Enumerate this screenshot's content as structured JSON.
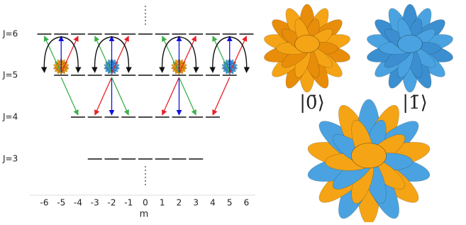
{
  "levels": [
    {
      "label": "J=6"
    },
    {
      "label": "J=5"
    },
    {
      "label": "J=4"
    },
    {
      "label": "J=3"
    }
  ],
  "axis": {
    "label": "m",
    "ticks": [
      "-6",
      "-5",
      "-4",
      "-3",
      "-2",
      "-1",
      "0",
      "1",
      "2",
      "3",
      "4",
      "5",
      "6"
    ]
  },
  "states": [
    {
      "label": "|0̄⟩"
    },
    {
      "label": "|1̄⟩"
    }
  ]
}
